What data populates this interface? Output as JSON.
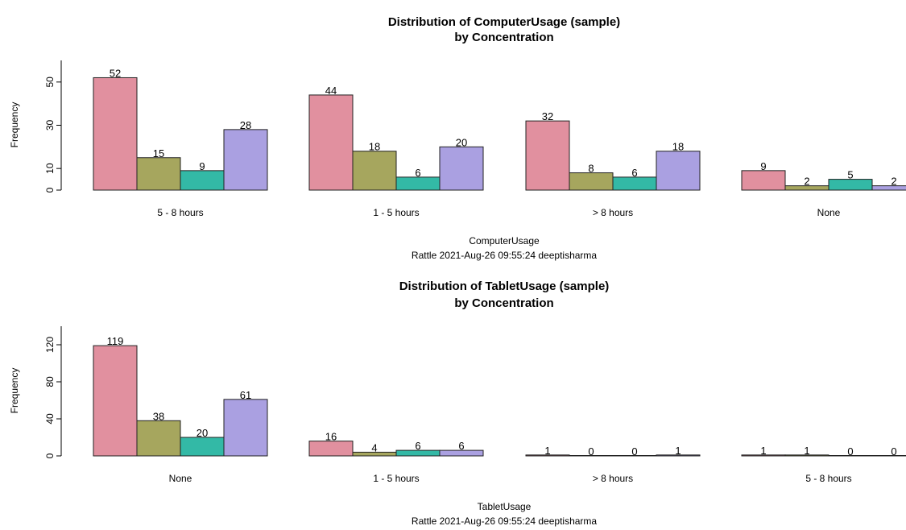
{
  "chart_data": [
    {
      "type": "bar",
      "title_line1": "Distribution of ComputerUsage (sample)",
      "title_line2": "by Concentration",
      "xlabel": "ComputerUsage",
      "ylabel": "Frequency",
      "footer": "Rattle 2021-Aug-26 09:55:24 deeptisharma",
      "categories": [
        "5 - 8 hours",
        "1 - 5 hours",
        "> 8 hours",
        "None"
      ],
      "yticks": [
        0,
        10,
        30,
        50
      ],
      "ylim": [
        0,
        60
      ],
      "series": [
        {
          "values": [
            52,
            44,
            32,
            9
          ],
          "color": "#E1909F"
        },
        {
          "values": [
            15,
            18,
            8,
            2
          ],
          "color": "#A6A65E"
        },
        {
          "values": [
            9,
            6,
            6,
            5
          ],
          "color": "#33B9A6"
        },
        {
          "values": [
            28,
            20,
            18,
            2
          ],
          "color": "#AAA0E1"
        }
      ]
    },
    {
      "type": "bar",
      "title_line1": "Distribution of TabletUsage (sample)",
      "title_line2": "by Concentration",
      "xlabel": "TabletUsage",
      "ylabel": "Frequency",
      "footer": "Rattle 2021-Aug-26 09:55:24 deeptisharma",
      "categories": [
        "None",
        "1 - 5 hours",
        "> 8 hours",
        "5 - 8 hours"
      ],
      "yticks": [
        0,
        40,
        80,
        120
      ],
      "ylim": [
        0,
        140
      ],
      "series": [
        {
          "values": [
            119,
            16,
            1,
            1
          ],
          "color": "#E1909F"
        },
        {
          "values": [
            38,
            4,
            0,
            1
          ],
          "color": "#A6A65E"
        },
        {
          "values": [
            20,
            6,
            0,
            0
          ],
          "color": "#33B9A6"
        },
        {
          "values": [
            61,
            6,
            1,
            0
          ],
          "color": "#AAA0E1"
        }
      ]
    }
  ]
}
